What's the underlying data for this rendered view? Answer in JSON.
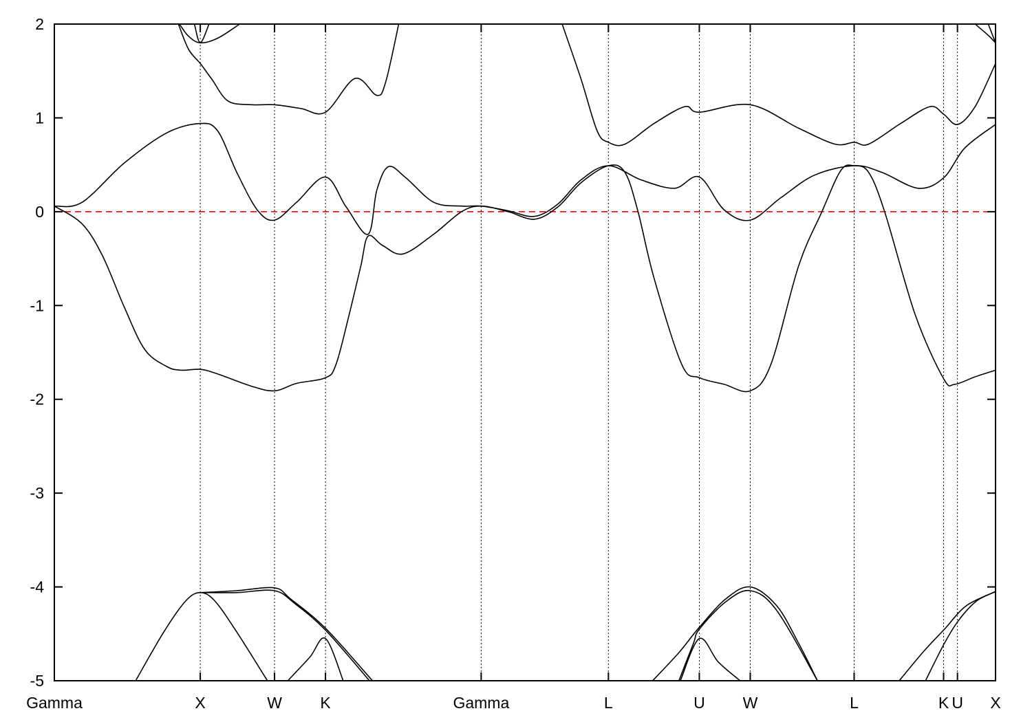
{
  "chart_data": {
    "type": "line",
    "title": "",
    "xlabel": "",
    "ylabel": "",
    "ylim": [
      -5,
      2
    ],
    "xlim": [
      0,
      6.45
    ],
    "yticks": [
      "2",
      "1",
      "0",
      "-1",
      "-2",
      "-3",
      "-4",
      "-5"
    ],
    "ytick_values": [
      2,
      1,
      0,
      -1,
      -2,
      -3,
      -4,
      -5
    ],
    "kpoints": [
      {
        "label": "Gamma",
        "k": 0
      },
      {
        "label": "X",
        "k": 1.0
      },
      {
        "label": "W",
        "k": 1.509
      },
      {
        "label": "K",
        "k": 1.858
      },
      {
        "label": "Gamma",
        "k": 2.925
      },
      {
        "label": "L",
        "k": 3.797
      },
      {
        "label": "U",
        "k": 4.42
      },
      {
        "label": "W",
        "k": 4.769
      },
      {
        "label": "L",
        "k": 5.481
      },
      {
        "label": "K",
        "k": 6.094
      },
      {
        "label": "U",
        "k": 6.189
      },
      {
        "label": "X",
        "k": 6.45
      }
    ],
    "fermi_level": 0,
    "fermi_color": "#ff0000",
    "band_color": "#000000",
    "grid": "vertical dotted lines at high-symmetry points",
    "legend": "none",
    "series": [
      {
        "points": [
          [
            0,
            0.06
          ],
          [
            0.19,
            -0.13
          ],
          [
            0.33,
            -0.47
          ],
          [
            0.48,
            -1.02
          ],
          [
            0.62,
            -1.47
          ],
          [
            0.77,
            -1.65
          ],
          [
            0.87,
            -1.69
          ],
          [
            1.0,
            -1.68
          ],
          [
            1.12,
            -1.73
          ],
          [
            1.35,
            -1.86
          ],
          [
            1.509,
            -1.91
          ],
          [
            1.66,
            -1.83
          ],
          [
            1.858,
            -1.77
          ],
          [
            1.93,
            -1.63
          ],
          [
            2.02,
            -1.1
          ],
          [
            2.1,
            -0.58
          ],
          [
            2.15,
            -0.26
          ],
          [
            2.25,
            -0.36
          ],
          [
            2.39,
            -0.45
          ],
          [
            2.6,
            -0.24
          ],
          [
            2.79,
            0.0
          ],
          [
            2.925,
            0.06
          ],
          [
            3.11,
            0.0
          ],
          [
            3.29,
            -0.08
          ],
          [
            3.45,
            0.05
          ],
          [
            3.61,
            0.31
          ],
          [
            3.797,
            0.49
          ],
          [
            3.91,
            0.42
          ],
          [
            4.0,
            0.0
          ],
          [
            4.11,
            -0.71
          ],
          [
            4.3,
            -1.63
          ],
          [
            4.42,
            -1.77
          ],
          [
            4.59,
            -1.84
          ],
          [
            4.769,
            -1.91
          ],
          [
            4.91,
            -1.63
          ],
          [
            5.1,
            -0.58
          ],
          [
            5.26,
            0.0
          ],
          [
            5.39,
            0.44
          ],
          [
            5.481,
            0.49
          ],
          [
            5.58,
            0.42
          ],
          [
            5.69,
            0.0
          ],
          [
            5.9,
            -1.1
          ],
          [
            6.094,
            -1.78
          ],
          [
            6.17,
            -1.84
          ],
          [
            6.31,
            -1.76
          ],
          [
            6.45,
            -1.69
          ]
        ]
      },
      {
        "points": [
          [
            0,
            0.06
          ],
          [
            0.19,
            0.1
          ],
          [
            0.48,
            0.52
          ],
          [
            0.77,
            0.84
          ],
          [
            1.0,
            0.94
          ],
          [
            1.12,
            0.86
          ],
          [
            1.25,
            0.42
          ],
          [
            1.39,
            0.02
          ],
          [
            1.509,
            -0.09
          ],
          [
            1.66,
            0.1
          ],
          [
            1.858,
            0.37
          ],
          [
            2.0,
            0.05
          ],
          [
            2.15,
            -0.24
          ],
          [
            2.21,
            0.23
          ],
          [
            2.29,
            0.48
          ],
          [
            2.41,
            0.36
          ],
          [
            2.6,
            0.1
          ],
          [
            2.79,
            0.06
          ],
          [
            2.925,
            0.06
          ],
          [
            3.11,
            0.01
          ],
          [
            3.29,
            -0.05
          ],
          [
            3.45,
            0.08
          ],
          [
            3.61,
            0.34
          ],
          [
            3.797,
            0.49
          ],
          [
            4.02,
            0.34
          ],
          [
            4.25,
            0.25
          ],
          [
            4.42,
            0.37
          ],
          [
            4.59,
            0.02
          ],
          [
            4.769,
            -0.09
          ],
          [
            4.98,
            0.15
          ],
          [
            5.21,
            0.39
          ],
          [
            5.481,
            0.49
          ],
          [
            5.67,
            0.42
          ],
          [
            5.92,
            0.25
          ],
          [
            6.094,
            0.36
          ],
          [
            6.24,
            0.68
          ],
          [
            6.45,
            0.93
          ]
        ]
      },
      {
        "points": [
          [
            0.85,
            2.0
          ],
          [
            0.92,
            1.73
          ],
          [
            1.0,
            1.58
          ],
          [
            1.08,
            1.41
          ],
          [
            1.19,
            1.18
          ],
          [
            1.35,
            1.14
          ],
          [
            1.509,
            1.14
          ],
          [
            1.69,
            1.1
          ],
          [
            1.858,
            1.06
          ],
          [
            2.06,
            1.42
          ],
          [
            2.21,
            1.24
          ],
          [
            2.27,
            1.38
          ],
          [
            2.36,
            2.0
          ]
        ]
      },
      {
        "points": [
          [
            3.48,
            2.0
          ],
          [
            3.61,
            1.41
          ],
          [
            3.72,
            0.86
          ],
          [
            3.797,
            0.74
          ],
          [
            3.91,
            0.72
          ],
          [
            4.11,
            0.94
          ],
          [
            4.32,
            1.12
          ],
          [
            4.42,
            1.06
          ],
          [
            4.769,
            1.14
          ],
          [
            5.1,
            0.89
          ],
          [
            5.35,
            0.72
          ],
          [
            5.481,
            0.74
          ],
          [
            5.58,
            0.72
          ],
          [
            5.8,
            0.94
          ],
          [
            6.0,
            1.12
          ],
          [
            6.094,
            1.04
          ],
          [
            6.19,
            0.93
          ],
          [
            6.31,
            1.12
          ],
          [
            6.45,
            1.58
          ]
        ]
      },
      {
        "points": [
          [
            0.857,
            2.0
          ],
          [
            0.92,
            1.87
          ],
          [
            1.0,
            1.8
          ],
          [
            1.12,
            1.85
          ],
          [
            1.27,
            2.0
          ]
        ]
      },
      {
        "points": [
          [
            0.96,
            2.0
          ],
          [
            1.0,
            1.8
          ],
          [
            1.06,
            2.0
          ]
        ]
      },
      {
        "points": [
          [
            6.31,
            2.0
          ],
          [
            6.4,
            1.88
          ],
          [
            6.45,
            1.8
          ]
        ]
      },
      {
        "points": [
          [
            6.4,
            2.0
          ],
          [
            6.45,
            1.8
          ]
        ]
      },
      {
        "points": [
          [
            0.557,
            -5.0
          ],
          [
            0.75,
            -4.48
          ],
          [
            0.9,
            -4.15
          ],
          [
            1.0,
            -4.06
          ],
          [
            1.1,
            -4.15
          ],
          [
            1.25,
            -4.48
          ],
          [
            1.46,
            -5.0
          ]
        ]
      },
      {
        "points": [
          [
            1.0,
            -4.06
          ],
          [
            1.25,
            -4.04
          ],
          [
            1.509,
            -4.01
          ],
          [
            1.62,
            -4.13
          ],
          [
            1.858,
            -4.44
          ],
          [
            2.18,
            -5.0
          ]
        ]
      },
      {
        "points": [
          [
            1.0,
            -4.06
          ],
          [
            1.25,
            -4.06
          ],
          [
            1.509,
            -4.04
          ],
          [
            1.65,
            -4.18
          ],
          [
            1.858,
            -4.46
          ],
          [
            2.16,
            -5.0
          ]
        ]
      },
      {
        "points": [
          [
            1.6,
            -5.0
          ],
          [
            1.75,
            -4.75
          ],
          [
            1.858,
            -4.55
          ],
          [
            1.98,
            -5.0
          ]
        ]
      },
      {
        "points": [
          [
            4.1,
            -5.0
          ],
          [
            4.28,
            -4.7
          ],
          [
            4.42,
            -4.43
          ],
          [
            4.6,
            -4.13
          ],
          [
            4.769,
            -4.0
          ],
          [
            4.95,
            -4.2
          ],
          [
            5.1,
            -4.6
          ],
          [
            5.23,
            -5.0
          ]
        ]
      },
      {
        "points": [
          [
            4.28,
            -5.0
          ],
          [
            4.38,
            -4.6
          ],
          [
            4.42,
            -4.45
          ],
          [
            4.6,
            -4.16
          ],
          [
            4.769,
            -4.04
          ],
          [
            4.95,
            -4.25
          ],
          [
            5.23,
            -5.0
          ]
        ]
      },
      {
        "points": [
          [
            4.29,
            -5.0
          ],
          [
            4.42,
            -4.55
          ],
          [
            4.55,
            -4.8
          ],
          [
            4.7,
            -5.0
          ]
        ]
      },
      {
        "points": [
          [
            5.79,
            -5.0
          ],
          [
            5.95,
            -4.7
          ],
          [
            6.1,
            -4.45
          ],
          [
            6.25,
            -4.2
          ],
          [
            6.45,
            -4.05
          ]
        ]
      },
      {
        "points": [
          [
            5.97,
            -5.0
          ],
          [
            6.1,
            -4.6
          ],
          [
            6.2,
            -4.35
          ],
          [
            6.32,
            -4.15
          ],
          [
            6.45,
            -4.05
          ]
        ]
      }
    ]
  }
}
